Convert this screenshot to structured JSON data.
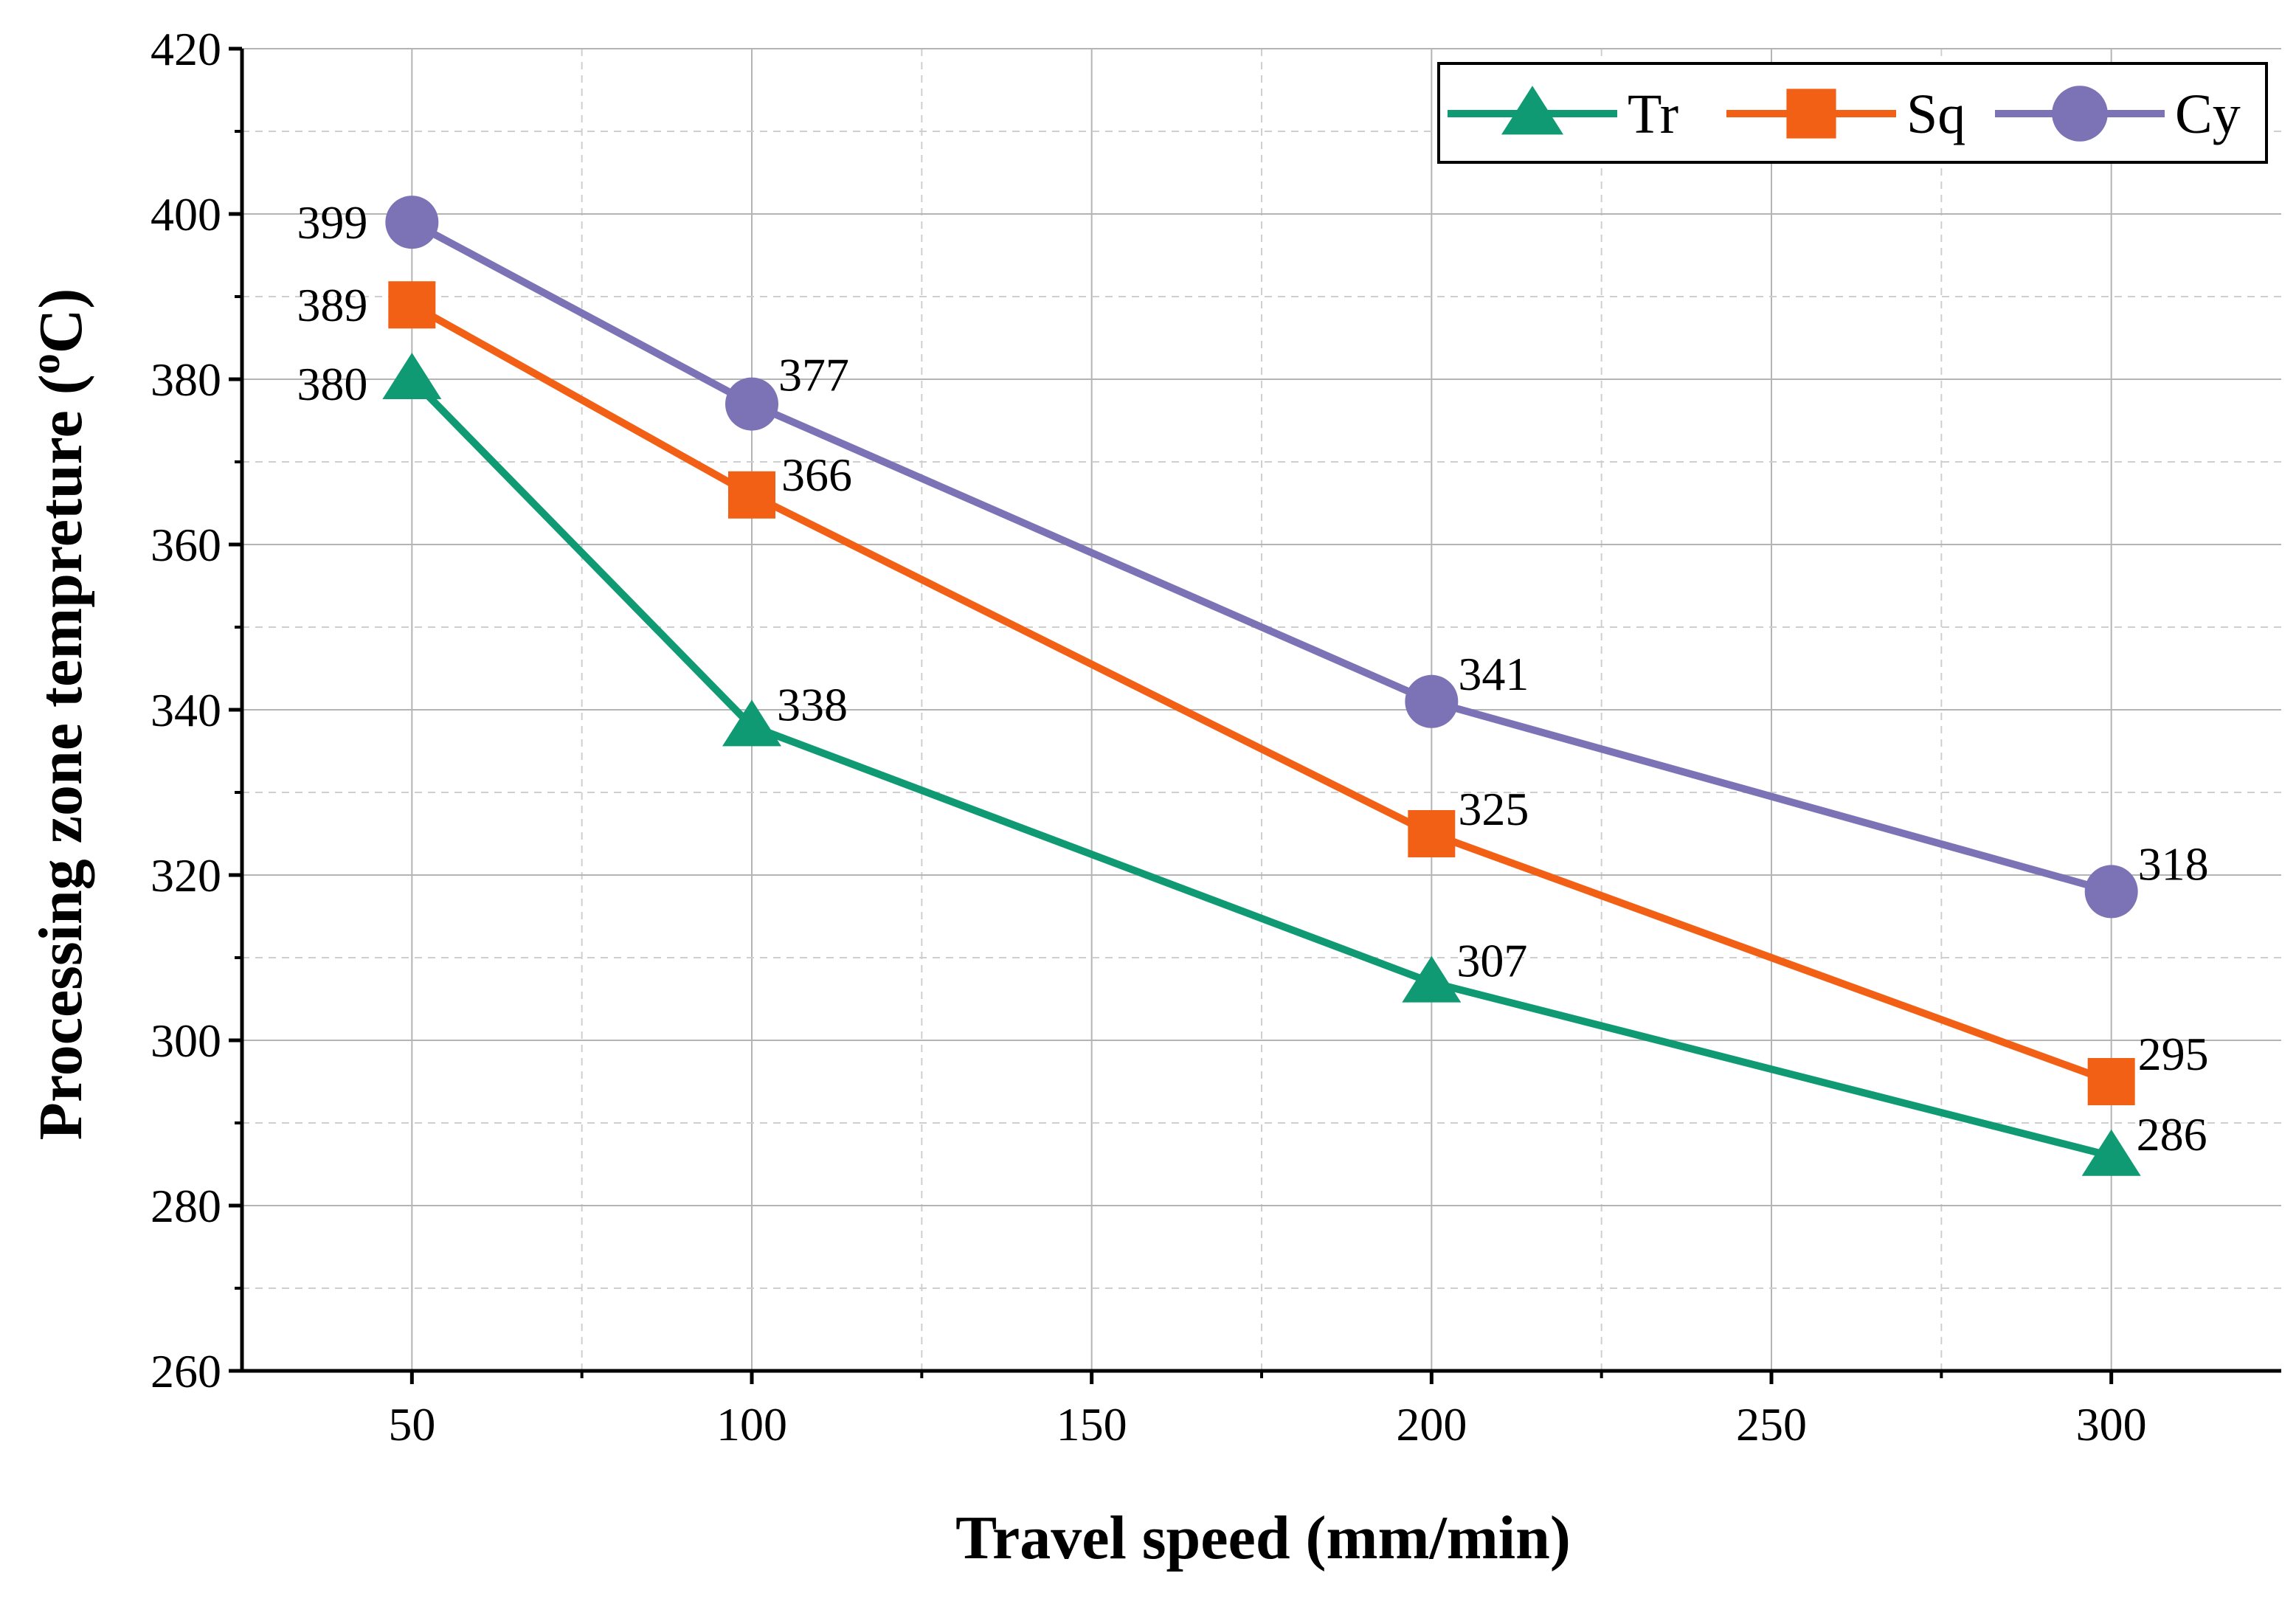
{
  "chart_data": {
    "type": "line",
    "title": "",
    "xlabel": "Travel speed (mm/min)",
    "ylabel_main": "Processing zone tempreture (",
    "ylabel_sup": "o",
    "ylabel_end": "C)",
    "x": [
      50,
      100,
      200,
      300
    ],
    "xlim": [
      25,
      325
    ],
    "ylim": [
      260,
      420
    ],
    "xticks": [
      50,
      100,
      150,
      200,
      250,
      300
    ],
    "yticks": [
      260,
      280,
      300,
      320,
      340,
      360,
      380,
      400,
      420
    ],
    "grid": true,
    "legend_position": "top-right",
    "series": [
      {
        "name": "Tr",
        "marker": "triangle",
        "color": "#109a73",
        "values": [
          380,
          338,
          307,
          286
        ],
        "labels": [
          "380",
          "338",
          "307",
          "286"
        ]
      },
      {
        "name": "Sq",
        "marker": "square",
        "color": "#f26016",
        "values": [
          389,
          366,
          325,
          295
        ],
        "labels": [
          "389",
          "366",
          "325",
          "295"
        ]
      },
      {
        "name": "Cy",
        "marker": "circle",
        "color": "#7c72b6",
        "values": [
          399,
          377,
          341,
          318
        ],
        "labels": [
          "399",
          "377",
          "341",
          "318"
        ]
      }
    ]
  }
}
